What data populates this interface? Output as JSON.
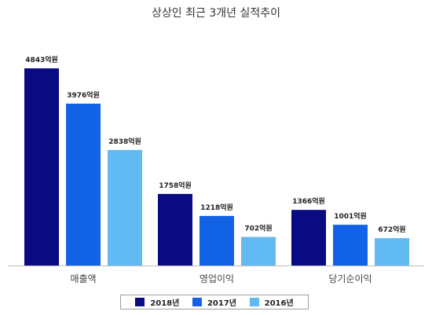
{
  "chart_data": {
    "type": "bar",
    "title": "상상인 최근 3개년 실적추이",
    "categories": [
      "매출액",
      "영업이익",
      "당기순이익"
    ],
    "series": [
      {
        "name": "2018년",
        "color": "#0a0a82",
        "values": [
          4843,
          1758,
          1366
        ],
        "labels": [
          "4843억원",
          "1758억원",
          "1366억원"
        ]
      },
      {
        "name": "2017년",
        "color": "#1262e6",
        "values": [
          3976,
          1218,
          1001
        ],
        "labels": [
          "3976억원",
          "1218억원",
          "1001억원"
        ]
      },
      {
        "name": "2016년",
        "color": "#62baf2",
        "values": [
          2838,
          702,
          672
        ],
        "labels": [
          "2838억원",
          "702억원",
          "672억원"
        ]
      }
    ],
    "ylim": [
      0,
      4843
    ],
    "grid": false,
    "legend": "bottom"
  }
}
